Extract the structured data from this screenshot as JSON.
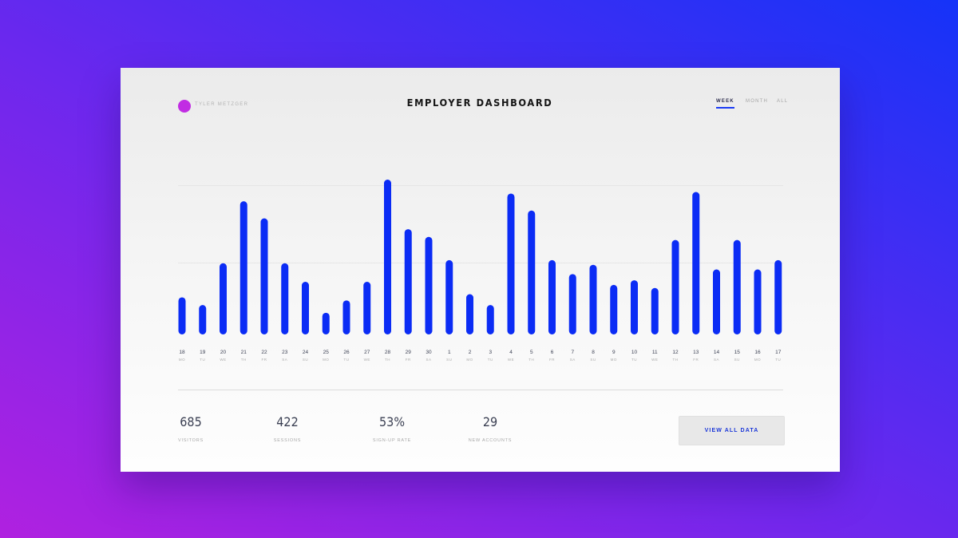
{
  "header": {
    "user_name": "TYLER METZGER",
    "title": "EMPLOYER DASHBOARD",
    "tabs": [
      {
        "label": "WEEK",
        "active": true
      },
      {
        "label": "MONTH",
        "active": false
      },
      {
        "label": "ALL",
        "active": false
      }
    ]
  },
  "colors": {
    "accent": "#0b2cf5",
    "avatar": "#c12de3",
    "bar": "#0b2cf5"
  },
  "chart_data": {
    "type": "bar",
    "title": "",
    "xlabel": "",
    "ylabel": "",
    "ylim": [
      0,
      100
    ],
    "grid": true,
    "categories": [
      "18",
      "19",
      "20",
      "21",
      "22",
      "23",
      "24",
      "25",
      "26",
      "27",
      "28",
      "29",
      "30",
      "1",
      "2",
      "3",
      "4",
      "5",
      "6",
      "7",
      "8",
      "9",
      "10",
      "11",
      "12",
      "13",
      "14",
      "15",
      "16",
      "17"
    ],
    "weekdays": [
      "MO",
      "TU",
      "WE",
      "TH",
      "FR",
      "SA",
      "SU",
      "MO",
      "TU",
      "WE",
      "TH",
      "FR",
      "SA",
      "SU",
      "MO",
      "TU",
      "WE",
      "TH",
      "FR",
      "SA",
      "SU",
      "MO",
      "TU",
      "WE",
      "TH",
      "FR",
      "SA",
      "SU",
      "MO",
      "TU"
    ],
    "values": [
      24,
      19,
      46,
      86,
      75,
      46,
      34,
      14,
      22,
      34,
      100,
      68,
      63,
      48,
      26,
      19,
      91,
      80,
      48,
      39,
      45,
      32,
      35,
      30,
      61,
      92,
      42,
      61,
      42,
      48
    ]
  },
  "stats": [
    {
      "value": "685",
      "label": "VISITORS"
    },
    {
      "value": "422",
      "label": "SESSIONS"
    },
    {
      "value": "53%",
      "label": "SIGN-UP RATE"
    },
    {
      "value": "29",
      "label": "NEW ACCOUNTS"
    }
  ],
  "view_button": "VIEW ALL DATA"
}
